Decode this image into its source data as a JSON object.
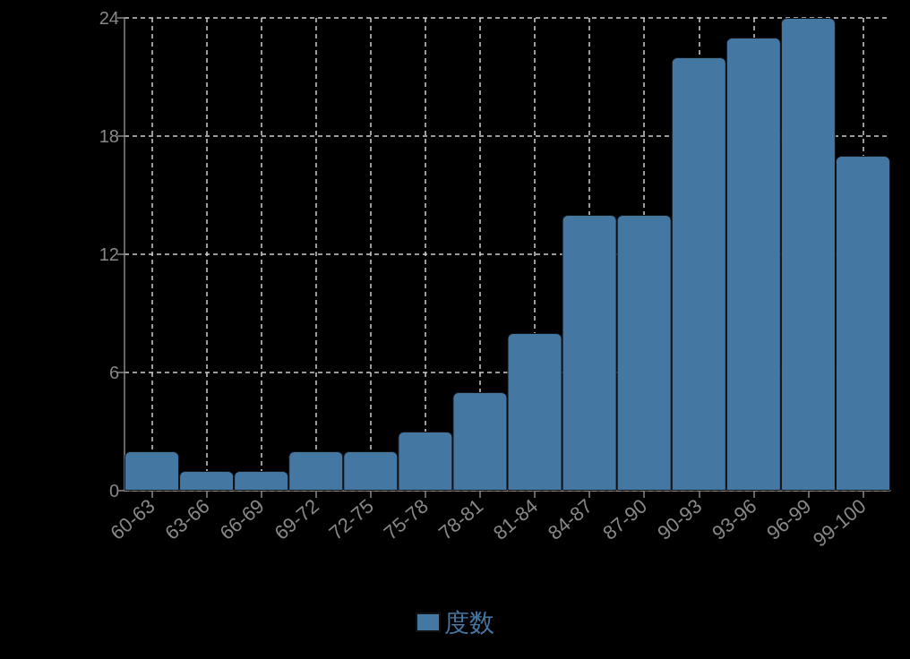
{
  "chart_data": {
    "type": "bar",
    "categories": [
      "60-63",
      "63-66",
      "66-69",
      "69-72",
      "72-75",
      "75-78",
      "78-81",
      "81-84",
      "84-87",
      "87-90",
      "90-93",
      "93-96",
      "96-99",
      "99-100"
    ],
    "series": [
      {
        "name": "度数",
        "color": "#4577a3",
        "values": [
          2,
          1,
          1,
          2,
          2,
          3,
          5,
          8,
          14,
          14,
          22,
          23,
          24,
          17
        ]
      }
    ],
    "ylim": [
      0,
      24
    ],
    "yticks": [
      0,
      6,
      12,
      18,
      24
    ],
    "grid": true,
    "legend": "bottom"
  }
}
